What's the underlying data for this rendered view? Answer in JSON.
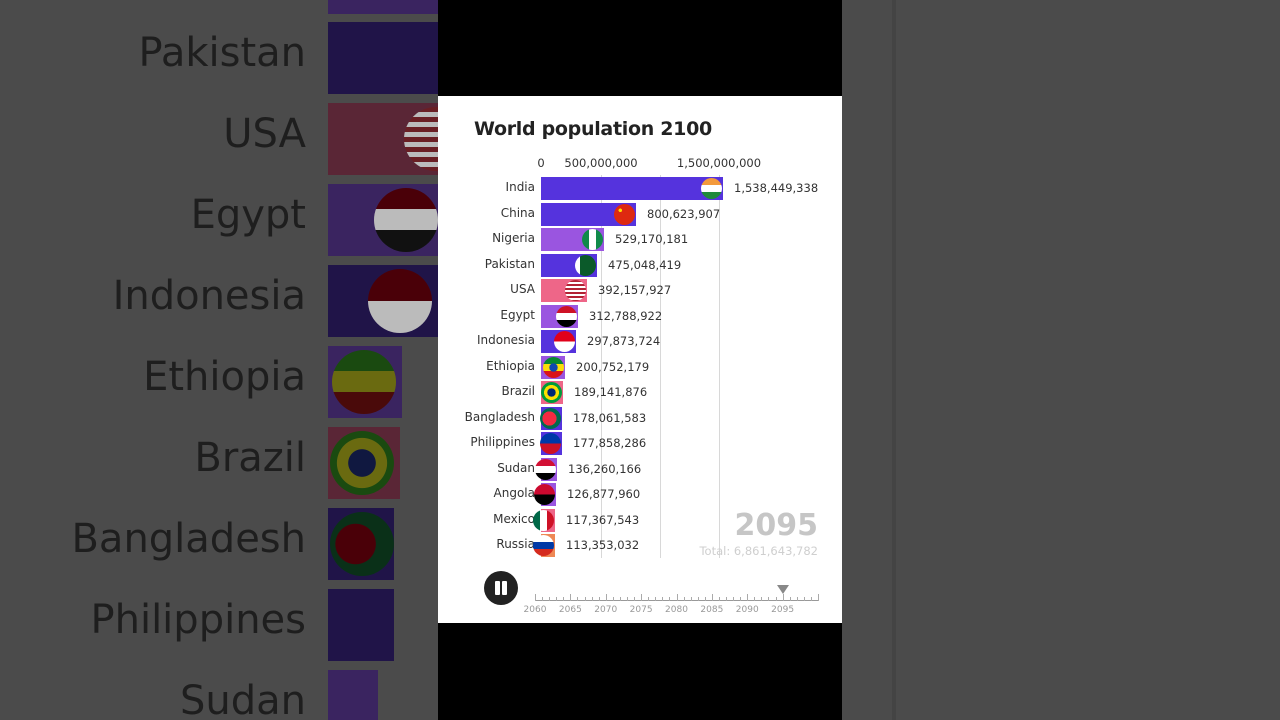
{
  "chart_data": {
    "type": "bar",
    "orientation": "horizontal",
    "title": "World population 2100",
    "current_year_label": "2095",
    "total_label": "Total: 6,861,643,782",
    "xlabel": "",
    "ylabel": "",
    "x_ticks": [
      {
        "value": 0,
        "label": "0"
      },
      {
        "value": 500000000,
        "label": "500,000,000"
      },
      {
        "value": 1000000000,
        "label": ""
      },
      {
        "value": 1500000000,
        "label": "1,500,000,000"
      }
    ],
    "grid": true,
    "categories": [
      "India",
      "China",
      "Nigeria",
      "Pakistan",
      "USA",
      "Egypt",
      "Indonesia",
      "Ethiopia",
      "Brazil",
      "Bangladesh",
      "Philippines",
      "Sudan",
      "Angola",
      "Mexico",
      "Russia"
    ],
    "values": [
      1538449338,
      800623907,
      529170181,
      475048419,
      392157927,
      312788922,
      297873724,
      200752179,
      189141876,
      178061583,
      177858286,
      136260166,
      126877960,
      117367543,
      113353032
    ],
    "value_labels": [
      "1,538,449,338",
      "800,623,907",
      "529,170,181",
      "475,048,419",
      "392,157,927",
      "312,788,922",
      "297,873,724",
      "200,752,179",
      "189,141,876",
      "178,061,583",
      "177,858,286",
      "136,260,166",
      "126,877,960",
      "117,367,543",
      "113,353,032"
    ],
    "bar_colors": [
      "#5533dd",
      "#5533dd",
      "#9a55e0",
      "#5533dd",
      "#ee6688",
      "#9a55e0",
      "#5533dd",
      "#9a55e0",
      "#ee6688",
      "#5533dd",
      "#5533dd",
      "#9a55e0",
      "#9a55e0",
      "#ee6688",
      "#ee8855"
    ]
  },
  "header": {
    "title": "World population 2100"
  },
  "axis": {
    "tick_0": "0",
    "tick_500m": "500,000,000",
    "tick_1500m": "1,500,000,000"
  },
  "rows": [
    {
      "label": "India",
      "value": "1,538,449,338"
    },
    {
      "label": "China",
      "value": "800,623,907"
    },
    {
      "label": "Nigeria",
      "value": "529,170,181"
    },
    {
      "label": "Pakistan",
      "value": "475,048,419"
    },
    {
      "label": "USA",
      "value": "392,157,927"
    },
    {
      "label": "Egypt",
      "value": "312,788,922"
    },
    {
      "label": "Indonesia",
      "value": "297,873,724"
    },
    {
      "label": "Ethiopia",
      "value": "200,752,179"
    },
    {
      "label": "Brazil",
      "value": "189,141,876"
    },
    {
      "label": "Bangladesh",
      "value": "178,061,583"
    },
    {
      "label": "Philippines",
      "value": "177,858,286"
    },
    {
      "label": "Sudan",
      "value": "136,260,166"
    },
    {
      "label": "Angola",
      "value": "126,877,960"
    },
    {
      "label": "Mexico",
      "value": "117,367,543"
    },
    {
      "label": "Russia",
      "value": "113,353,032"
    }
  ],
  "overlay": {
    "year": "2095",
    "total": "Total: 6,861,643,782"
  },
  "controls": {
    "pause_icon": "pause-icon",
    "timeline_labels": [
      "2060",
      "2065",
      "2070",
      "2075",
      "2080",
      "2085",
      "2090",
      "2095"
    ],
    "timeline_current": "2095"
  },
  "background": {
    "labels": [
      "Pakistan",
      "USA",
      "Egypt",
      "Indonesia",
      "Ethiopia",
      "Brazil",
      "Bangladesh",
      "Philippines",
      "Sudan"
    ]
  }
}
